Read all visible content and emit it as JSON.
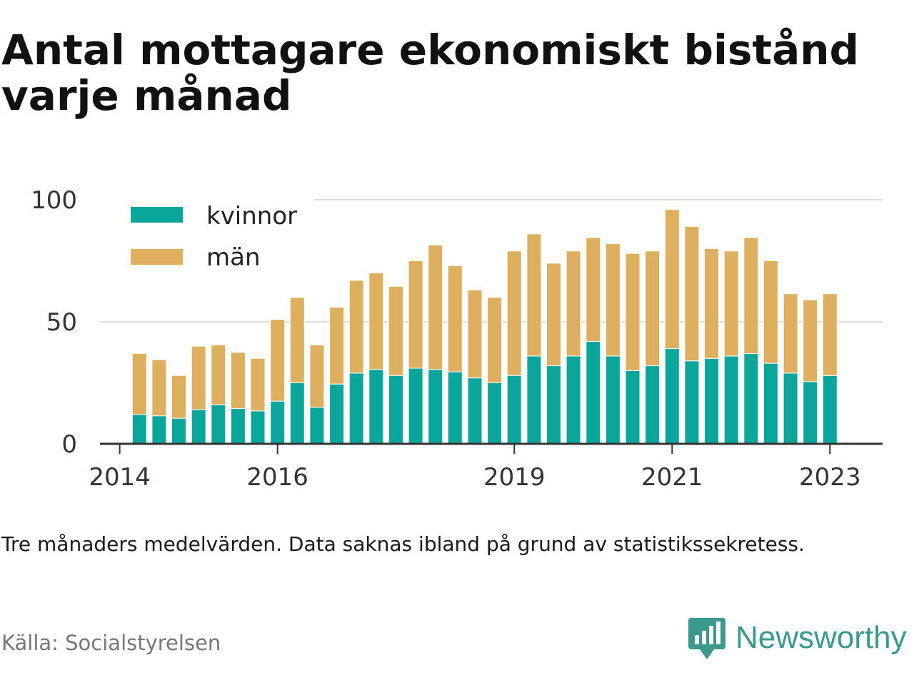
{
  "title": "Antal mottagare ekonomiskt bistånd varje månad",
  "note": "Tre månaders medelvärden. Data saknas ibland på grund av statistikssekretess.",
  "source": "Källa: Socialstyrelsen",
  "brand": {
    "name": "Newsworthy",
    "logo_icon": "newsworthy-bar-chart-icon"
  },
  "colors": {
    "kvinnor": "#0aa69c",
    "man": "#ddaf5e",
    "grid": "#dddddd",
    "axis": "#333333",
    "brand": "#3a9a8c"
  },
  "chart_data": {
    "type": "bar",
    "stacked": true,
    "title": "Antal mottagare ekonomiskt bistånd varje månad",
    "xlabel": "",
    "ylabel": "",
    "ylim": [
      0,
      100
    ],
    "yticks": [
      0,
      50,
      100
    ],
    "xlim": [
      "2013-10-01",
      "2023-09-01"
    ],
    "xticks": [
      {
        "label": "2014",
        "x": "2014-01-01"
      },
      {
        "label": "2016",
        "x": "2016-01-01"
      },
      {
        "label": "2019",
        "x": "2019-01-01"
      },
      {
        "label": "2021",
        "x": "2021-01-01"
      },
      {
        "label": "2023",
        "x": "2023-01-01"
      }
    ],
    "grid": true,
    "legend_position": "top-left",
    "x": [
      "2014-04-01",
      "2014-07-01",
      "2014-10-01",
      "2015-01-01",
      "2015-04-01",
      "2015-07-01",
      "2015-10-01",
      "2016-01-01",
      "2016-04-01",
      "2016-07-01",
      "2016-10-01",
      "2017-01-01",
      "2017-04-01",
      "2017-07-01",
      "2017-10-01",
      "2018-01-01",
      "2018-04-01",
      "2018-07-01",
      "2018-10-01",
      "2019-01-01",
      "2019-04-01",
      "2019-07-01",
      "2019-10-01",
      "2020-01-01",
      "2020-04-01",
      "2020-07-01",
      "2020-10-01",
      "2021-01-01",
      "2021-04-01",
      "2021-07-01",
      "2021-10-01",
      "2022-01-01",
      "2022-04-01",
      "2022-07-01",
      "2022-10-01",
      "2023-01-01"
    ],
    "series": [
      {
        "name": "kvinnor",
        "values": [
          12,
          11.5,
          10.5,
          14,
          16,
          14.5,
          13.5,
          17.5,
          25,
          15,
          24.5,
          29,
          30.5,
          28,
          31,
          30.5,
          29.5,
          27,
          25,
          28,
          36,
          32,
          36,
          42,
          36,
          30,
          32,
          39,
          34,
          35,
          36,
          37,
          33,
          29,
          25.5,
          28
        ]
      },
      {
        "name": "män",
        "values": [
          25,
          23,
          17.5,
          26,
          24.5,
          23,
          21.5,
          33.5,
          35,
          25.5,
          31.5,
          38,
          39.5,
          36.5,
          44,
          51,
          43.5,
          36,
          35,
          51,
          50,
          42,
          43,
          42.5,
          46,
          48,
          47,
          57,
          55,
          45,
          43,
          47.5,
          42,
          32.5,
          33.5,
          33.5
        ]
      }
    ]
  }
}
